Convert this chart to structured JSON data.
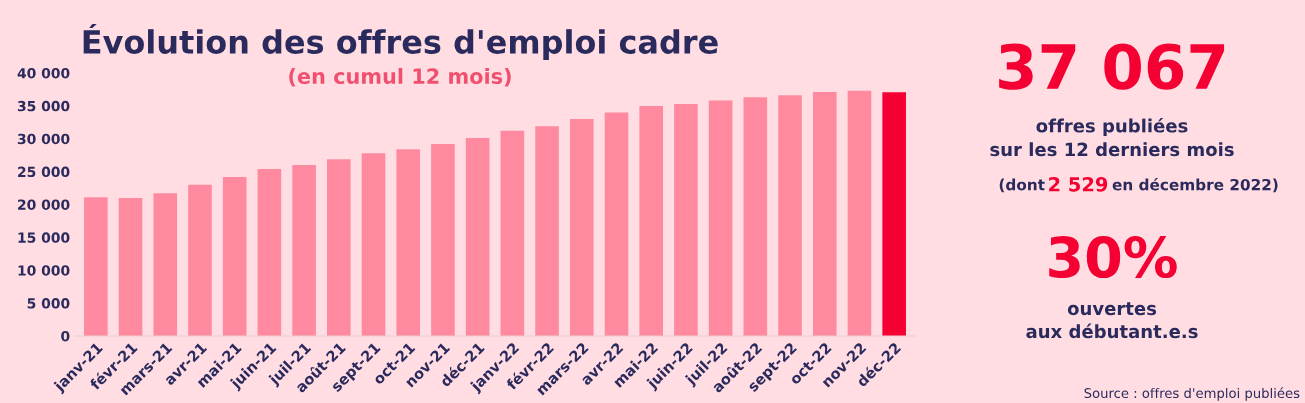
{
  "chart_data": {
    "type": "bar",
    "title": "Évolution des offres d'emploi cadre",
    "subtitle": "(en cumul 12 mois)",
    "categories": [
      "janv-21",
      "févr-21",
      "mars-21",
      "avr-21",
      "mai-21",
      "juin-21",
      "juil-21",
      "août-21",
      "sept-21",
      "oct-21",
      "nov-21",
      "déc-21",
      "janv-22",
      "févr-22",
      "mars-22",
      "avr-22",
      "mai-22",
      "juin-22",
      "juil-22",
      "août-22",
      "sept-22",
      "oct-22",
      "nov-22",
      "déc-22"
    ],
    "values": [
      21100,
      21000,
      21700,
      23000,
      24200,
      25400,
      26000,
      26900,
      27800,
      28400,
      29200,
      30100,
      31200,
      31900,
      33000,
      34000,
      35000,
      35300,
      35800,
      36300,
      36600,
      37100,
      37300,
      37067
    ],
    "colors": [
      "#ff8a9f",
      "#ff8a9f",
      "#ff8a9f",
      "#ff8a9f",
      "#ff8a9f",
      "#ff8a9f",
      "#ff8a9f",
      "#ff8a9f",
      "#ff8a9f",
      "#ff8a9f",
      "#ff8a9f",
      "#ff8a9f",
      "#ff8a9f",
      "#ff8a9f",
      "#ff8a9f",
      "#ff8a9f",
      "#ff8a9f",
      "#ff8a9f",
      "#ff8a9f",
      "#ff8a9f",
      "#ff8a9f",
      "#ff8a9f",
      "#ff8a9f",
      "#f50032"
    ],
    "ylim": [
      0,
      40000
    ],
    "yticks": [
      0,
      {
        "value": 5000,
        "label": "5 000"
      },
      {
        "value": 10000,
        "label": "10 000"
      },
      {
        "value": 15000,
        "label": "15 000"
      },
      {
        "value": 20000,
        "label": "20 000"
      },
      {
        "value": 25000,
        "label": "25 000"
      },
      {
        "value": 30000,
        "label": "30 000"
      },
      {
        "value": 35000,
        "label": "35 000"
      },
      {
        "value": 40000,
        "label": "40 000"
      }
    ],
    "grid": false,
    "legend": false,
    "annotations": [
      "37 067",
      "offres publiées",
      "sur les 12 derniers mois",
      "(dont",
      "2 529",
      "en décembre 2022)",
      "30%",
      "ouvertes",
      "aux débutant.e.s",
      "Source : offres d'emploi publiées"
    ]
  }
}
